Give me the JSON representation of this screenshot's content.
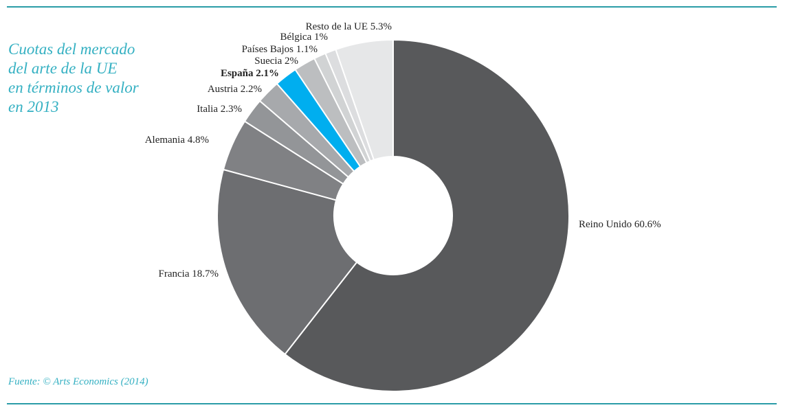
{
  "title_lines": [
    "Cuotas del mercado",
    "del arte de la UE",
    "en términos de valor",
    "en 2013"
  ],
  "source": "Fuente: © Arts Economics (2014)",
  "colors": {
    "accent": "#34b0c2",
    "rule": "#2a9ca7",
    "highlight": "#00aeef"
  },
  "chart_data": {
    "type": "pie",
    "title": "Cuotas del mercado del arte de la UE en términos de valor en 2013",
    "donut": true,
    "categories": [
      "Reino Unido",
      "Francia",
      "Alemania",
      "Italia",
      "Austria",
      "España",
      "Suecia",
      "Países Bajos",
      "Bélgica",
      "Resto de la UE"
    ],
    "values": [
      60.6,
      18.7,
      4.8,
      2.3,
      2.2,
      2.1,
      2.0,
      1.1,
      1.0,
      5.3
    ],
    "labels": [
      "Reino Unido 60.6%",
      "Francia 18.7%",
      "Alemania 4.8%",
      "Italia 2.3%",
      "Austria 2.2%",
      "España 2.1%",
      "Suecia 2%",
      "Países Bajos 1.1%",
      "Bélgica 1%",
      "Resto de la UE 5.3%"
    ],
    "colors": [
      "#58595b",
      "#6d6e71",
      "#808184",
      "#939598",
      "#a7a9ac",
      "#00aeef",
      "#bcbec0",
      "#d1d3d4",
      "#dcdddf",
      "#e6e7e8"
    ],
    "highlighted": "España"
  }
}
